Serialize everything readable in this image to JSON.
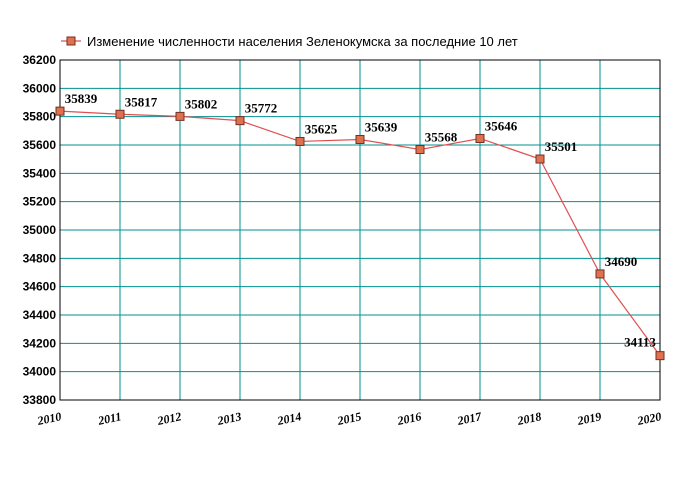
{
  "chart_data": {
    "type": "line",
    "title": "Изменение численности населения Зеленокумска за последние 10 лет",
    "legend_position": "top",
    "grid": true,
    "x": [
      "2010",
      "2011",
      "2012",
      "2013",
      "2014",
      "2015",
      "2016",
      "2017",
      "2018",
      "2019",
      "2020"
    ],
    "series": [
      {
        "name": "Изменение численности населения Зеленокумска за последние 10 лет",
        "values": [
          35839,
          35817,
          35802,
          35772,
          35625,
          35639,
          35568,
          35646,
          35501,
          34690,
          34113
        ],
        "labels": [
          "35839",
          "35817",
          "35802",
          "35772",
          "35625",
          "35639",
          "35568",
          "35646",
          "35501",
          "34690",
          "34113"
        ]
      }
    ],
    "ylim": [
      33800,
      36200
    ],
    "yticks": [
      "33800",
      "34000",
      "34200",
      "34400",
      "34600",
      "34800",
      "35000",
      "35200",
      "35400",
      "35600",
      "35800",
      "36000",
      "36200"
    ],
    "colors": {
      "line": "#e05050",
      "marker_fill": "#e07050",
      "marker_stroke": "#703020",
      "grid": "#009090",
      "frame": "#000000"
    }
  }
}
